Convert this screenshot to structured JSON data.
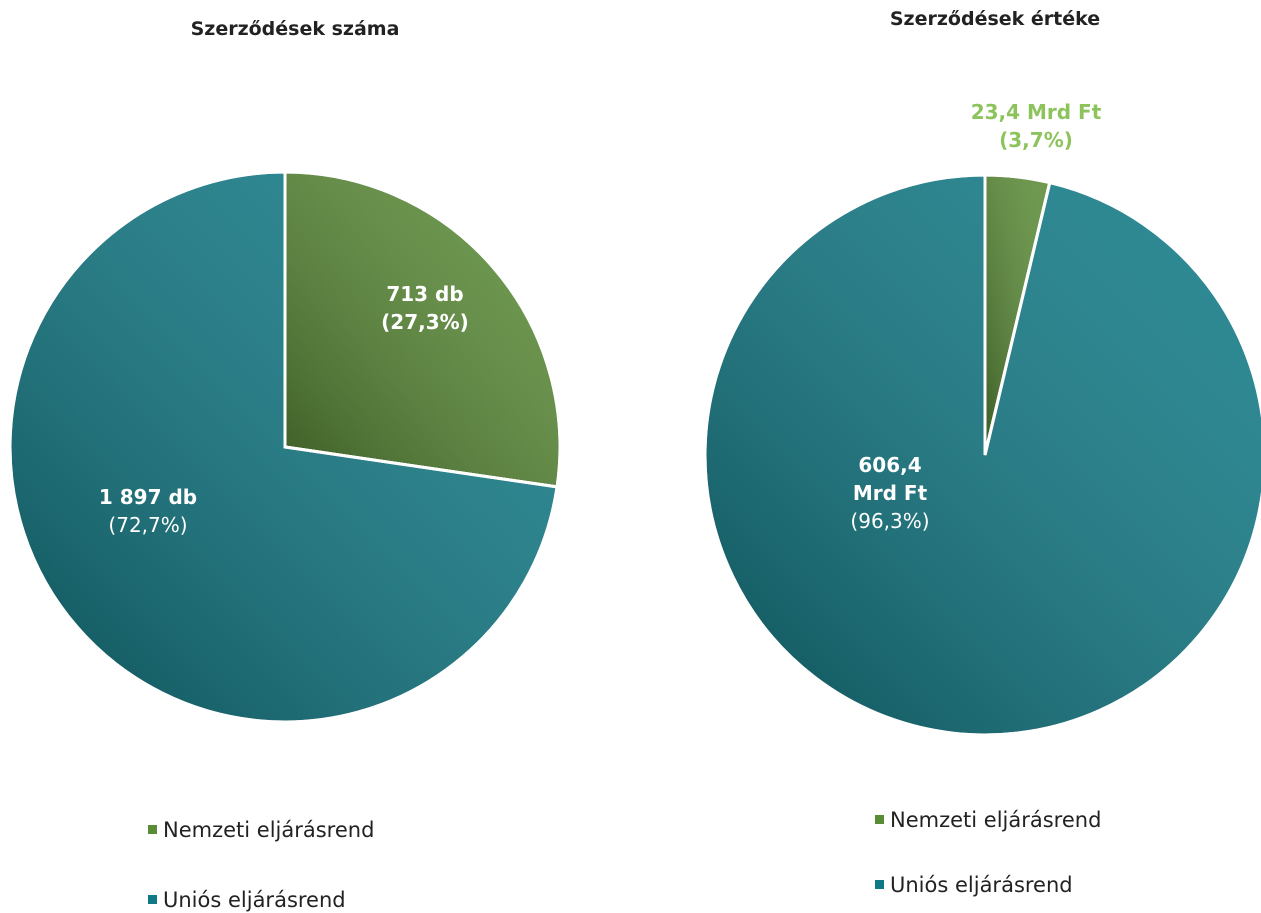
{
  "chart_data": [
    {
      "type": "pie",
      "title": "Szerződések száma",
      "categories": [
        "Nemzeti eljárásrend",
        "Uniós eljárásrend"
      ],
      "values": [
        713,
        1897
      ],
      "value_labels": [
        "713 db",
        "1 897 db"
      ],
      "percents": [
        27.3,
        72.7
      ],
      "percent_labels": [
        "(27,3%)",
        "(72,7%)"
      ],
      "colors": [
        "#5a8c36",
        "#0f7a86"
      ]
    },
    {
      "type": "pie",
      "title": "Szerződések értéke",
      "categories": [
        "Nemzeti eljárásrend",
        "Uniós eljárásrend"
      ],
      "values": [
        23.4,
        606.4
      ],
      "value_labels": [
        "23,4 Mrd Ft",
        "606,4 Mrd Ft"
      ],
      "percents": [
        3.7,
        96.3
      ],
      "percent_labels": [
        "(3,7%)",
        "(96,3%)"
      ],
      "colors": [
        "#5a8c36",
        "#0f7a86"
      ]
    }
  ]
}
